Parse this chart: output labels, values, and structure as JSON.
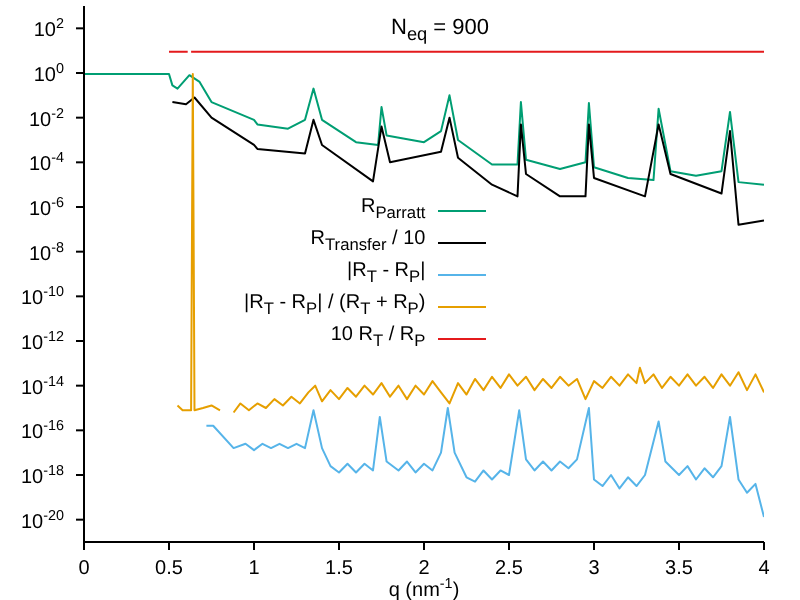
{
  "chart_data": {
    "type": "line",
    "xlabel": "q (nm$^{-1}$)",
    "annotations": [
      "N$_{eq}$ = 900"
    ],
    "log": "y",
    "xlim": [
      0,
      4
    ],
    "xticks": [
      0,
      0.5,
      1,
      1.5,
      2,
      2.5,
      3,
      3.5,
      4
    ],
    "ylim": [
      1e-21,
      1000.0
    ],
    "yticks": [
      {
        "value": 1e-20,
        "label": "10$^{-20}$"
      },
      {
        "value": 1e-18,
        "label": "10$^{-18}$"
      },
      {
        "value": 1e-16,
        "label": "10$^{-16}$"
      },
      {
        "value": 1e-14,
        "label": "10$^{-14}$"
      },
      {
        "value": 1e-12,
        "label": "10$^{-12}$"
      },
      {
        "value": 1e-10,
        "label": "10$^{-10}$"
      },
      {
        "value": 1e-08,
        "label": "10$^{-8}$"
      },
      {
        "value": 1e-06,
        "label": "10$^{-6}$"
      },
      {
        "value": 0.0001,
        "label": "10$^{-4}$"
      },
      {
        "value": 0.01,
        "label": "10$^{-2}$"
      },
      {
        "value": 1,
        "label": "10$^{0}$"
      },
      {
        "value": 100,
        "label": "10$^{2}$"
      }
    ],
    "grid": false,
    "legend": "center",
    "marker": "none",
    "line_style": "solid",
    "series": [
      {
        "name": "R$_{Parratt}$",
        "color": "#009e73",
        "x": [
          0,
          0.5,
          0.52,
          0.55,
          0.62,
          0.68,
          0.75,
          1.0,
          1.02,
          1.2,
          1.3,
          1.35,
          1.4,
          1.6,
          1.73,
          1.75,
          1.78,
          2.0,
          2.1,
          2.15,
          2.2,
          2.4,
          2.55,
          2.57,
          2.6,
          2.8,
          2.95,
          2.97,
          3.0,
          3.2,
          3.35,
          3.38,
          3.45,
          3.6,
          3.75,
          3.8,
          3.85,
          4.0
        ],
        "values": [
          0.9,
          0.9,
          0.28,
          0.2,
          0.8,
          0.4,
          0.05,
          0.008,
          0.005,
          0.0032,
          0.008,
          0.2,
          0.008,
          0.0008,
          0.0006,
          0.03,
          0.0016,
          0.0008,
          0.0025,
          0.1,
          0.001,
          8e-05,
          8e-05,
          0.05,
          0.00013,
          5e-05,
          0.0001,
          0.045,
          6e-05,
          2e-05,
          1.6e-05,
          0.025,
          4e-05,
          2.5e-05,
          4e-05,
          0.018,
          1.3e-05,
          1e-05
        ]
      },
      {
        "name": "R$_{Transfer}$ / 10",
        "color": "#000000",
        "x": [
          0.52,
          0.6,
          0.65,
          0.75,
          1.0,
          1.02,
          1.3,
          1.35,
          1.4,
          1.7,
          1.75,
          1.8,
          2.1,
          2.15,
          2.2,
          2.4,
          2.55,
          2.57,
          2.6,
          2.8,
          2.95,
          2.97,
          3.0,
          3.3,
          3.38,
          3.45,
          3.75,
          3.8,
          3.85,
          4.0
        ],
        "values": [
          0.05,
          0.04,
          0.08,
          0.01,
          0.0006,
          0.0004,
          0.00025,
          0.008,
          0.0006,
          1.4e-05,
          0.004,
          0.0001,
          0.0003,
          0.01,
          0.00016,
          1e-05,
          3e-06,
          0.005,
          3e-05,
          3e-06,
          3e-06,
          0.005,
          2e-05,
          3e-06,
          0.005,
          3e-05,
          4e-06,
          0.0025,
          1.6e-07,
          2.5e-07
        ]
      },
      {
        "name": "|R$_{T}$ - R$_{P}$|",
        "color": "#56b4e9",
        "x": [
          0.72,
          0.76,
          0.88,
          0.95,
          1.0,
          1.05,
          1.1,
          1.15,
          1.2,
          1.25,
          1.3,
          1.35,
          1.4,
          1.45,
          1.5,
          1.55,
          1.6,
          1.65,
          1.7,
          1.74,
          1.78,
          1.85,
          1.9,
          1.95,
          2.0,
          2.05,
          2.1,
          2.14,
          2.18,
          2.25,
          2.3,
          2.35,
          2.4,
          2.45,
          2.5,
          2.56,
          2.6,
          2.65,
          2.7,
          2.75,
          2.8,
          2.85,
          2.9,
          2.97,
          3.0,
          3.05,
          3.1,
          3.15,
          3.2,
          3.25,
          3.3,
          3.38,
          3.42,
          3.5,
          3.55,
          3.6,
          3.65,
          3.7,
          3.75,
          3.8,
          3.85,
          3.9,
          3.95,
          4.0
        ],
        "values": [
          1.6e-16,
          1.6e-16,
          1.6e-17,
          2.5e-17,
          1.3e-17,
          2.5e-17,
          1.6e-17,
          2.5e-17,
          1.6e-17,
          2.5e-17,
          1.6e-17,
          7.9e-16,
          1.6e-17,
          2.5e-18,
          1.3e-18,
          3.2e-18,
          1.3e-18,
          3.2e-18,
          1.6e-18,
          4e-16,
          4e-18,
          1.6e-18,
          4e-18,
          1.3e-18,
          3.2e-18,
          1.6e-18,
          1e-17,
          1e-15,
          1e-17,
          7.9e-19,
          5e-19,
          1.6e-18,
          6.3e-19,
          1.6e-18,
          1e-18,
          7.9e-16,
          5e-18,
          1.6e-18,
          4e-18,
          1.6e-18,
          4e-18,
          2e-18,
          5e-18,
          1e-15,
          6.3e-19,
          3.2e-19,
          1e-18,
          2.5e-19,
          7.9e-19,
          3.2e-19,
          1e-18,
          2.5e-16,
          4e-18,
          1e-18,
          2.5e-18,
          6.3e-19,
          2e-18,
          7.9e-19,
          2.5e-18,
          4e-16,
          6.3e-19,
          1.6e-19,
          4e-19,
          1.3e-20
        ]
      },
      {
        "name": "|R$_{T}$ - R$_{P}$| / (R$_{T}$ + R$_{P}$)",
        "color": "#e69f00",
        "x": [
          0.55,
          0.58,
          0.63,
          0.64,
          0.65,
          0.7,
          0.75,
          0.8,
          0.85,
          0.88,
          0.92,
          0.97,
          1.02,
          1.07,
          1.12,
          1.17,
          1.22,
          1.27,
          1.32,
          1.36,
          1.4,
          1.45,
          1.5,
          1.55,
          1.6,
          1.65,
          1.7,
          1.75,
          1.8,
          1.85,
          1.9,
          1.95,
          2.0,
          2.05,
          2.1,
          2.15,
          2.2,
          2.25,
          2.3,
          2.35,
          2.4,
          2.45,
          2.5,
          2.55,
          2.6,
          2.65,
          2.7,
          2.75,
          2.8,
          2.85,
          2.9,
          2.95,
          3.0,
          3.05,
          3.1,
          3.15,
          3.2,
          3.25,
          3.27,
          3.3,
          3.35,
          3.4,
          3.45,
          3.5,
          3.55,
          3.6,
          3.65,
          3.7,
          3.75,
          3.8,
          3.85,
          3.9,
          3.95,
          4.0
        ],
        "values": [
          1.3e-15,
          7.9e-16,
          7.9e-16,
          0.9,
          7.9e-16,
          1e-15,
          1.3e-15,
          7.9e-16,
          null,
          6.3e-16,
          1.6e-15,
          7.9e-16,
          1.6e-15,
          1e-15,
          2.5e-15,
          1.3e-15,
          3.2e-15,
          1.6e-15,
          5e-15,
          1e-14,
          2e-15,
          6.3e-15,
          2.5e-15,
          7.9e-15,
          3.2e-15,
          1e-14,
          4e-15,
          1.3e-14,
          3.2e-15,
          1e-14,
          2.5e-15,
          1e-14,
          4e-15,
          1.6e-14,
          5e-15,
          1.6e-15,
          1.3e-14,
          4e-15,
          2e-14,
          6.3e-15,
          2.5e-14,
          7.9e-15,
          3.2e-14,
          1e-14,
          2.5e-14,
          6.3e-15,
          2e-14,
          7.9e-15,
          2.5e-14,
          1e-14,
          2e-14,
          2.5e-15,
          1.6e-14,
          7.9e-15,
          2.5e-14,
          1e-14,
          3.2e-14,
          1.3e-14,
          6.3e-14,
          1.3e-14,
          3.2e-14,
          7.9e-15,
          2.5e-14,
          1e-14,
          3.2e-14,
          1e-14,
          2.5e-14,
          7.9e-15,
          3.2e-14,
          1e-14,
          4e-14,
          6.3e-15,
          3.2e-14,
          5e-15
        ]
      },
      {
        "name": "10 R$_{T}$ / R$_{P}$",
        "color": "#e41a1c",
        "x": [
          0.5,
          0.61,
          0.62,
          0.63,
          4.0
        ],
        "values": [
          9,
          9,
          null,
          9,
          9
        ]
      }
    ]
  }
}
